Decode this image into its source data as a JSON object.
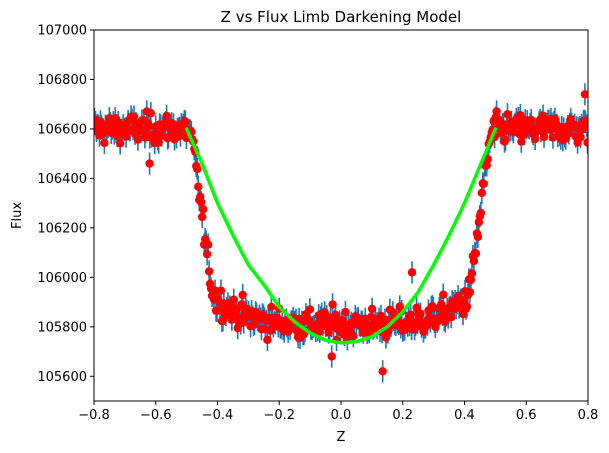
{
  "chart_data": {
    "type": "scatter",
    "title": "Z vs Flux Limb Darkening Model",
    "xlabel": "Z",
    "ylabel": "Flux",
    "xlim": [
      -0.8,
      0.8
    ],
    "ylim": [
      105500,
      107000
    ],
    "xticks": [
      -0.8,
      -0.6,
      -0.4,
      -0.2,
      0.0,
      0.2,
      0.4,
      0.6,
      0.8
    ],
    "xtick_labels": [
      "−0.8",
      "−0.6",
      "−0.4",
      "−0.2",
      "0.0",
      "0.2",
      "0.4",
      "0.6",
      "0.8"
    ],
    "yticks": [
      105600,
      105800,
      106000,
      106200,
      106400,
      106600,
      106800,
      107000
    ],
    "ytick_labels": [
      "105600",
      "105800",
      "106000",
      "106200",
      "106400",
      "106600",
      "106800",
      "107000"
    ],
    "grid": false,
    "series": [
      {
        "kind": "errorbar-scatter",
        "marker_color": "#ff0000",
        "errorbar_color": "#1f77b4",
        "points_count": 500,
        "error": 45,
        "noise": 55,
        "baseline": 106600,
        "minimum": 105810,
        "ingress_start": -0.5,
        "ingress_end": -0.4,
        "egress_start": 0.4,
        "egress_end": 0.5,
        "outliers": [
          {
            "x": 0.135,
            "y": 105620
          },
          {
            "x": -0.03,
            "y": 105680
          },
          {
            "x": 0.23,
            "y": 106020
          },
          {
            "x": 0.79,
            "y": 106740
          },
          {
            "x": -0.62,
            "y": 106460
          }
        ]
      },
      {
        "kind": "model-line",
        "color": "#00ff00",
        "x": [
          -0.5,
          -0.45,
          -0.4,
          -0.35,
          -0.3,
          -0.25,
          -0.2,
          -0.15,
          -0.1,
          -0.05,
          0.0,
          0.05,
          0.1,
          0.15,
          0.2,
          0.25,
          0.3,
          0.35,
          0.4,
          0.45,
          0.5
        ],
        "y": [
          106600,
          106460,
          106300,
          106170,
          106050,
          105970,
          105880,
          105820,
          105775,
          105745,
          105735,
          105740,
          105760,
          105800,
          105860,
          105940,
          106050,
          106170,
          106300,
          106450,
          106600
        ]
      }
    ]
  }
}
